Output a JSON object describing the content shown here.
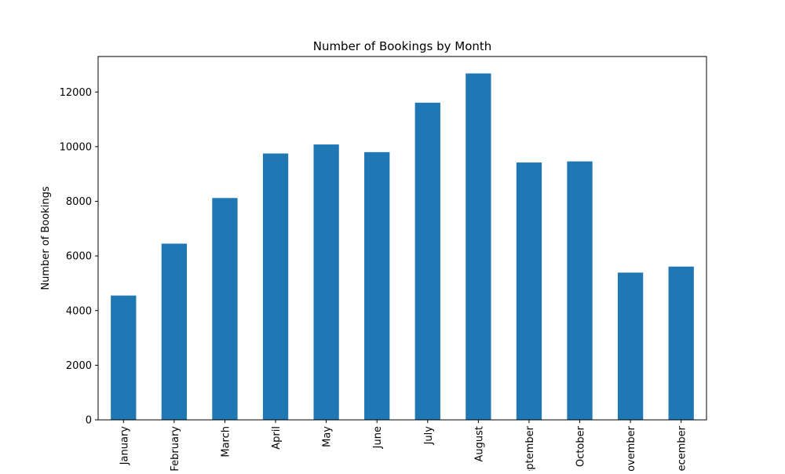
{
  "chart_data": {
    "type": "bar",
    "title": "Number of Bookings by Month",
    "xlabel": "",
    "ylabel": "Number of Bookings",
    "categories": [
      "January",
      "February",
      "March",
      "April",
      "May",
      "June",
      "July",
      "August",
      "September",
      "October",
      "November",
      "December"
    ],
    "values": [
      4550,
      6450,
      8120,
      9750,
      10080,
      9800,
      11610,
      12680,
      9420,
      9460,
      5390,
      5610
    ],
    "ylim": [
      0,
      13300
    ],
    "yticks": [
      0,
      2000,
      4000,
      6000,
      8000,
      10000,
      12000
    ],
    "bar_color": "#1f77b4",
    "grid": false,
    "legend": "none"
  }
}
